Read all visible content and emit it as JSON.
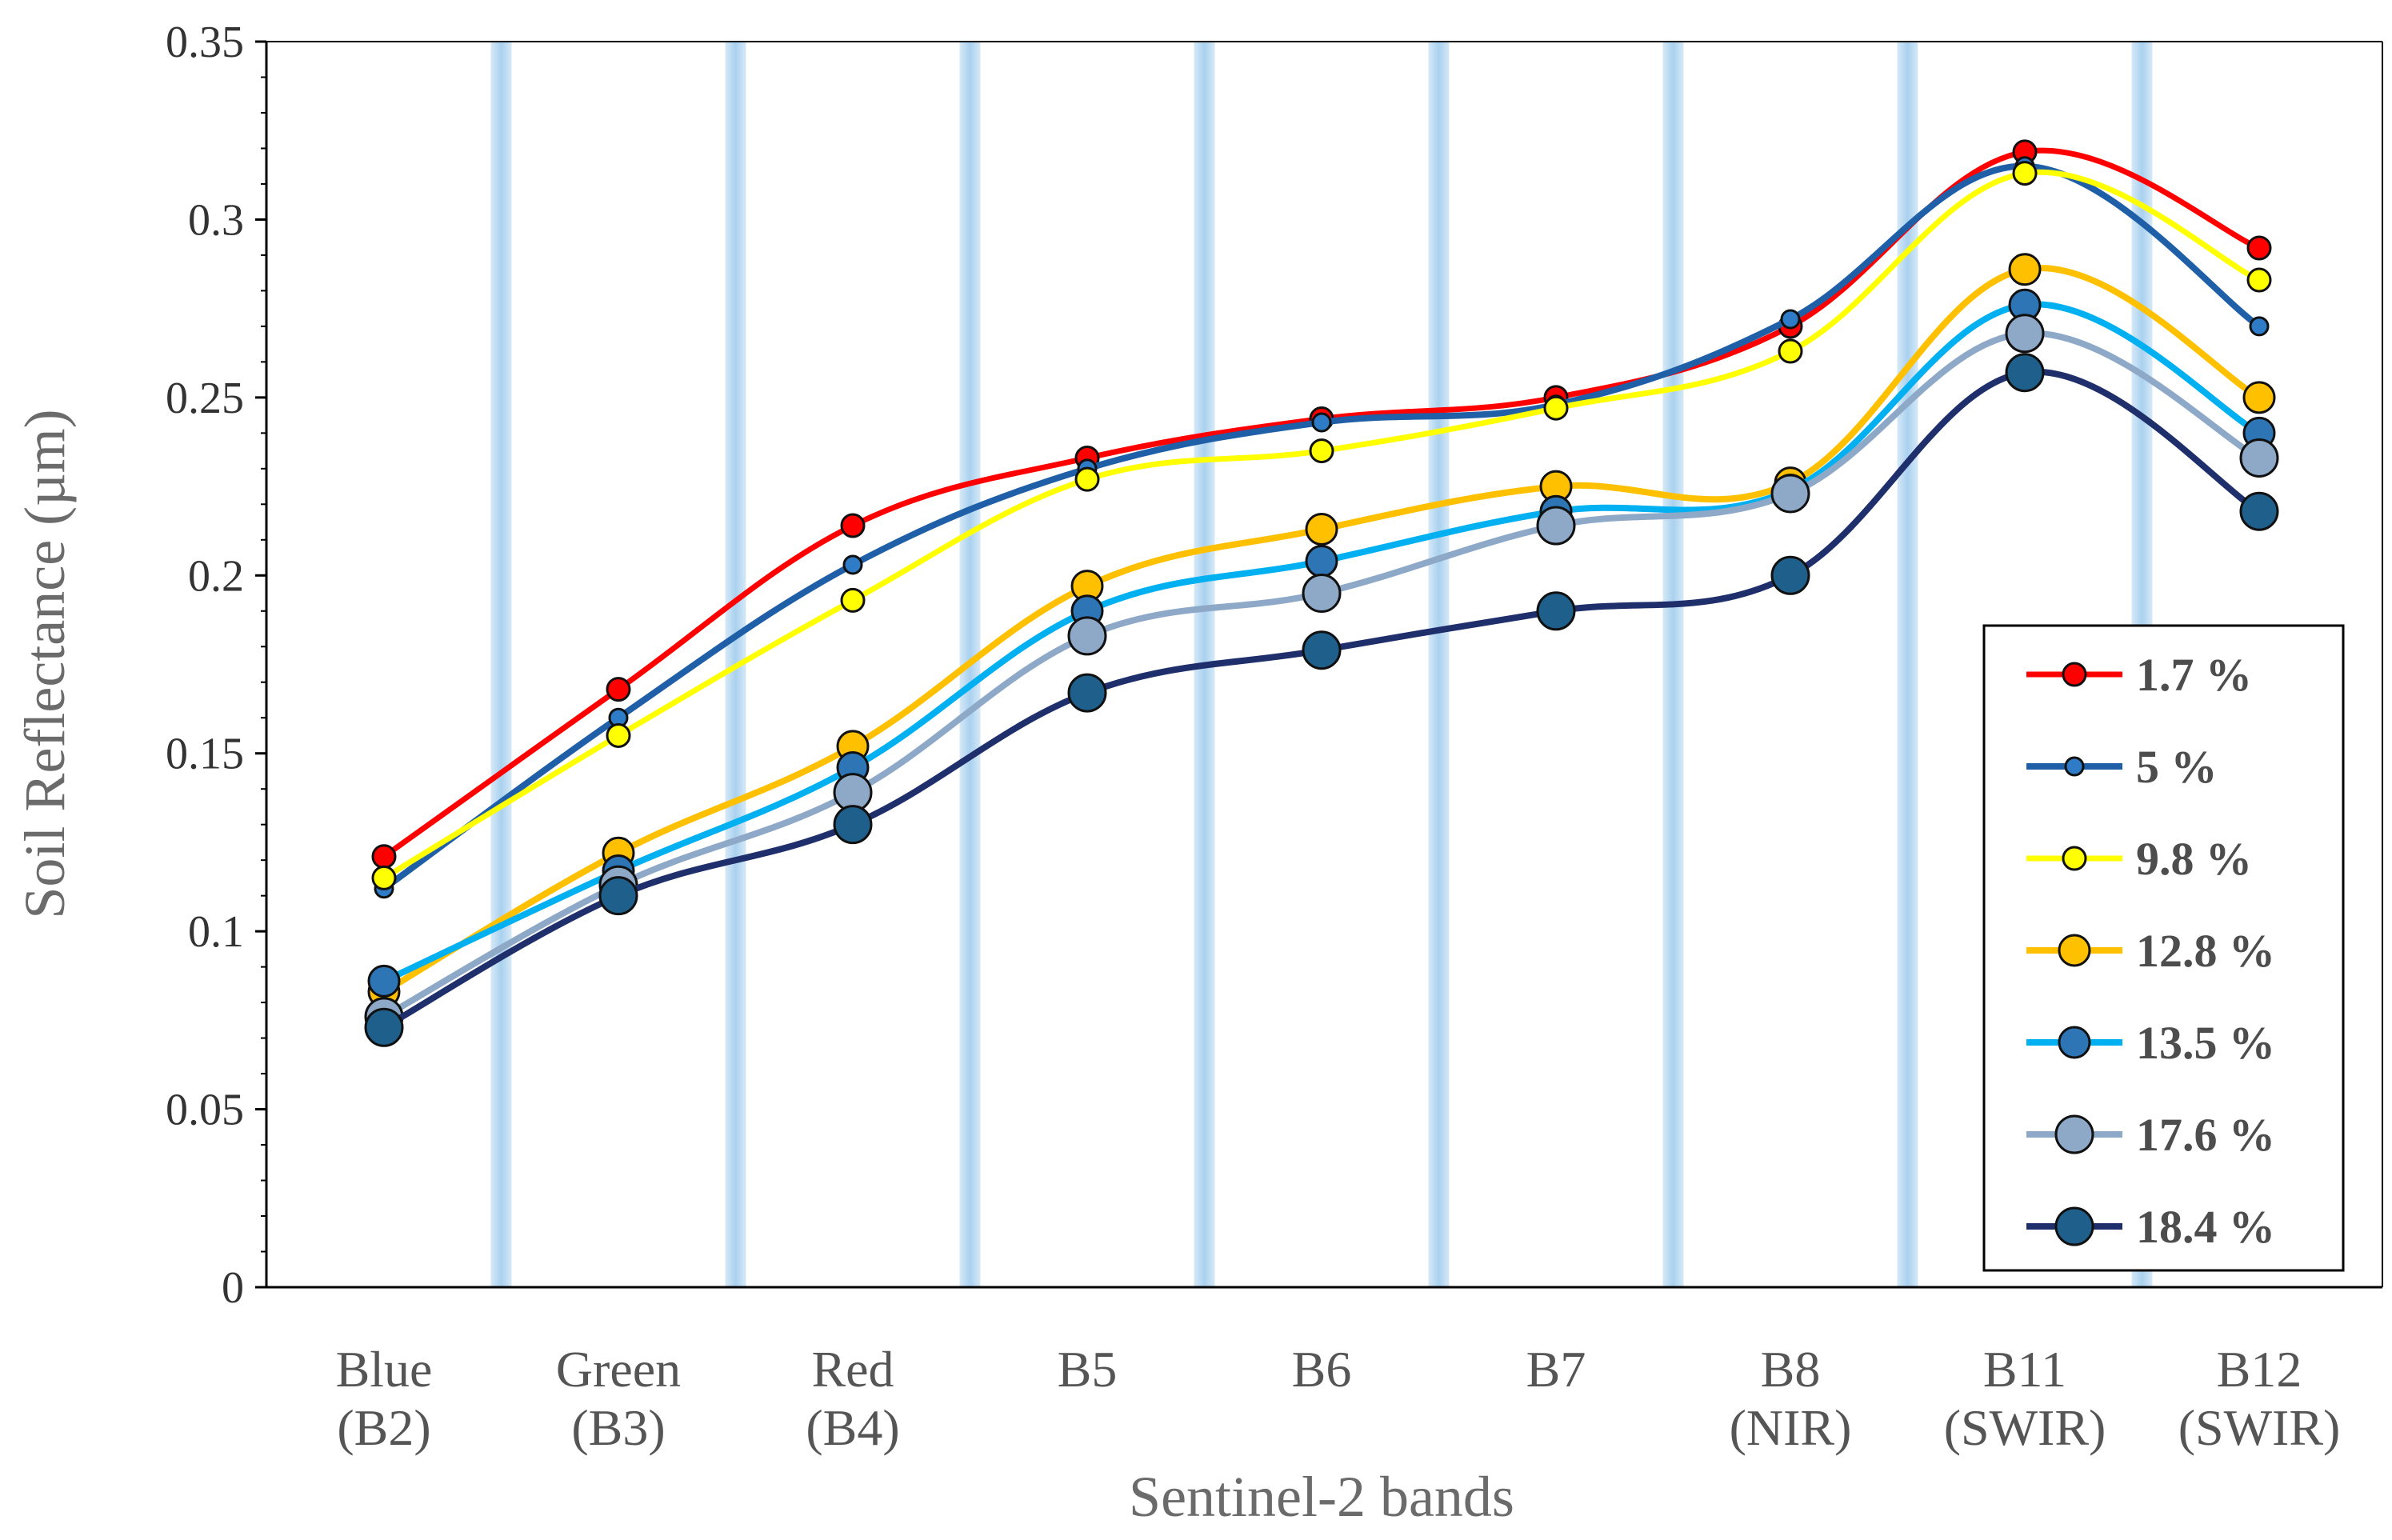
{
  "chart_data": {
    "type": "line",
    "title": "",
    "xlabel": "Sentinel-2  bands",
    "ylabel": "Soil Reflectance (µm)",
    "ylim": [
      0,
      0.35
    ],
    "yticks": [
      "0",
      "0.05",
      "0.1",
      "0.15",
      "0.2",
      "0.25",
      "0.3",
      "0.35"
    ],
    "categories": [
      [
        "Blue",
        "(B2)"
      ],
      [
        "Green",
        "(B3)"
      ],
      [
        "Red",
        "(B4)"
      ],
      [
        "B5"
      ],
      [
        "B6"
      ],
      [
        "B7"
      ],
      [
        "B8",
        "(NIR)"
      ],
      [
        "B11",
        "(SWIR)"
      ],
      [
        "B12",
        "(SWIR)"
      ]
    ],
    "grid": false,
    "legend_position": "bottom-right",
    "series": [
      {
        "name": "1.7 %",
        "line": "#ff0000",
        "marker": "#ff0000",
        "size": "small",
        "values": [
          0.121,
          0.168,
          0.214,
          0.233,
          0.244,
          0.25,
          0.27,
          0.319,
          0.292
        ]
      },
      {
        "name": "5 %",
        "line": "#1f5fa8",
        "marker": "#2e7cc7",
        "size": "tiny",
        "values": [
          0.112,
          0.16,
          0.203,
          0.23,
          0.243,
          0.248,
          0.272,
          0.315,
          0.27
        ]
      },
      {
        "name": "9.8 %",
        "line": "#ffff00",
        "marker": "#ffff00",
        "size": "small",
        "values": [
          0.115,
          0.155,
          0.193,
          0.227,
          0.235,
          0.247,
          0.263,
          0.313,
          0.283
        ]
      },
      {
        "name": "12.8 %",
        "line": "#ffc000",
        "marker": "#ffc000",
        "size": "medium",
        "values": [
          0.083,
          0.122,
          0.152,
          0.197,
          0.213,
          0.225,
          0.226,
          0.286,
          0.25
        ]
      },
      {
        "name": "13.5 %",
        "line": "#00b0f0",
        "marker": "#2e75b6",
        "size": "medium",
        "values": [
          0.086,
          0.117,
          0.146,
          0.19,
          0.204,
          0.218,
          0.224,
          0.276,
          0.24
        ]
      },
      {
        "name": "17.6 %",
        "line": "#8ea9c8",
        "marker": "#8ea9c8",
        "size": "large",
        "values": [
          0.076,
          0.113,
          0.139,
          0.183,
          0.195,
          0.214,
          0.223,
          0.268,
          0.233
        ]
      },
      {
        "name": "18.4 %",
        "line": "#1f2f6b",
        "marker": "#1f5f8b",
        "size": "large",
        "values": [
          0.073,
          0.11,
          0.13,
          0.167,
          0.179,
          0.19,
          0.2,
          0.257,
          0.218
        ]
      }
    ]
  }
}
